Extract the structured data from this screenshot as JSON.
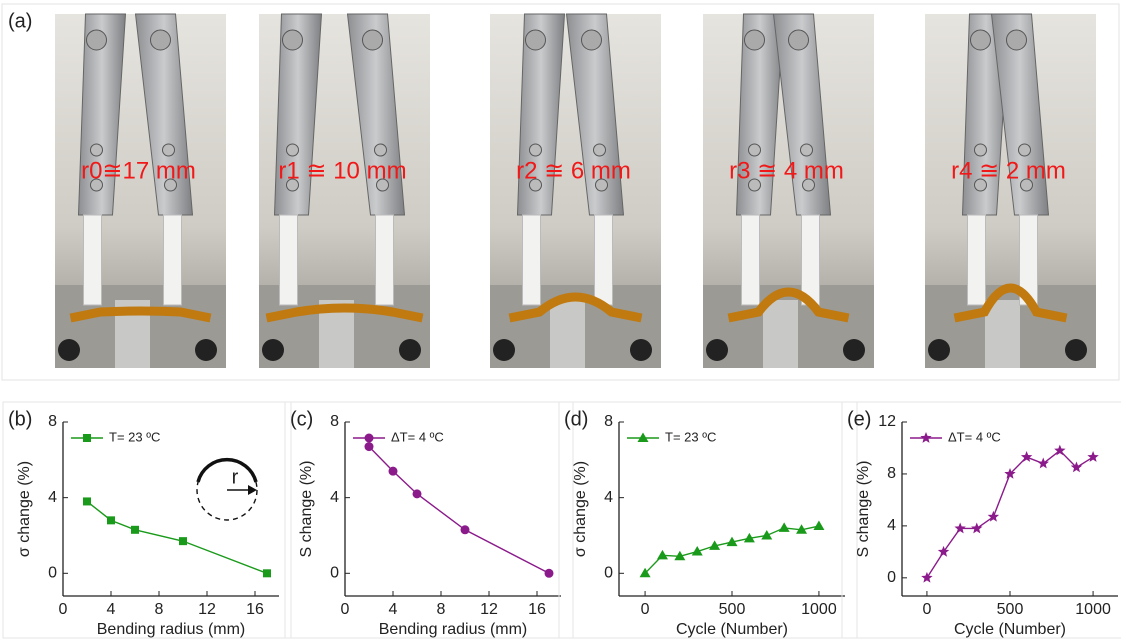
{
  "figure": {
    "panel_a": {
      "label": "(a)",
      "photos": [
        "r0≅17 mm",
        "r1 ≅ 10 mm",
        "r2 ≅ 6 mm",
        "r3 ≅ 4 mm",
        "r4 ≅ 2 mm"
      ]
    }
  },
  "chart_data": [
    {
      "type": "line",
      "panel_label": "(b)",
      "x_label": "Bending radius (mm)",
      "y_label": "σ change (%)",
      "x": [
        2,
        4,
        6,
        10,
        17
      ],
      "series": [
        {
          "name": "T= 23 ºC",
          "color": "#1a9a1a",
          "marker": "square",
          "values": [
            3.8,
            2.8,
            2.3,
            1.7,
            0
          ]
        }
      ],
      "xlim": [
        0,
        18
      ],
      "xticks": [
        0,
        4,
        8,
        12,
        16
      ],
      "ylim": [
        -1.2,
        8
      ],
      "yticks": [
        0,
        4,
        8
      ],
      "legend": "upper left",
      "inset_label": "r"
    },
    {
      "type": "line",
      "panel_label": "(c)",
      "x_label": "Bending radius (mm)",
      "y_label": "S change (%)",
      "x": [
        2,
        4,
        6,
        10,
        17
      ],
      "series": [
        {
          "name": "ΔT= 4 ºC",
          "color": "#8b1a8b",
          "marker": "circle",
          "values": [
            6.7,
            5.4,
            4.2,
            2.3,
            0
          ]
        }
      ],
      "xlim": [
        0,
        18
      ],
      "xticks": [
        0,
        4,
        8,
        12,
        16
      ],
      "ylim": [
        -1.2,
        8
      ],
      "yticks": [
        0,
        4,
        8
      ],
      "legend": "upper left"
    },
    {
      "type": "line",
      "panel_label": "(d)",
      "x_label": "Cycle (Number)",
      "y_label": "σ change (%)",
      "x": [
        0,
        100,
        200,
        300,
        400,
        500,
        600,
        700,
        800,
        900,
        1000
      ],
      "series": [
        {
          "name": "T= 23 ºC",
          "color": "#1a9a1a",
          "marker": "triangle",
          "values": [
            0,
            0.95,
            0.9,
            1.15,
            1.45,
            1.65,
            1.85,
            2.0,
            2.4,
            2.3,
            2.5
          ]
        }
      ],
      "xlim": [
        -150,
        1150
      ],
      "xticks": [
        0,
        500,
        1000
      ],
      "ylim": [
        -1.2,
        8
      ],
      "yticks": [
        0,
        4,
        8
      ],
      "legend": "upper left"
    },
    {
      "type": "line",
      "panel_label": "(e)",
      "x_label": "Cycle (Number)",
      "y_label": "S change (%)",
      "x": [
        0,
        100,
        200,
        300,
        400,
        500,
        600,
        700,
        800,
        900,
        1000
      ],
      "series": [
        {
          "name": "ΔT= 4 ºC",
          "color": "#8b1a8b",
          "marker": "star",
          "values": [
            0,
            2,
            3.8,
            3.8,
            4.7,
            8.0,
            9.3,
            8.8,
            9.8,
            8.5,
            9.3
          ]
        }
      ],
      "xlim": [
        -150,
        1150
      ],
      "xticks": [
        0,
        500,
        1000
      ],
      "ylim": [
        -1.4,
        12
      ],
      "yticks": [
        0,
        4,
        8,
        12
      ],
      "legend": "upper left"
    }
  ]
}
